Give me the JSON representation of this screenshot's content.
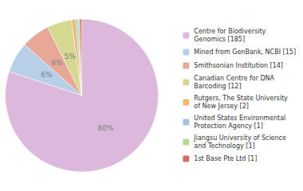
{
  "chart_data": {
    "type": "pie",
    "categories": [
      "Centre for Biodiversity\nGenomics [185]",
      "Mined from GenBank, NCBI [15]",
      "Smithsonian Institution [14]",
      "Canadian Centre for DNA\nBarcoding [12]",
      "Rutgers, The State University\nof New Jersey [2]",
      "United States Environmental\nProtection Agency [1]",
      "Jiangsu University of Science\nand Technology [1]",
      "1st Base Pte Ltd [1]"
    ],
    "values": [
      80.09,
      6.49,
      6.06,
      5.19,
      0.87,
      0.43,
      0.43,
      0.43
    ],
    "value_labels": [
      "80%",
      "6%",
      "6%",
      "5%",
      null,
      null,
      null,
      null
    ],
    "data_labels": true,
    "colors": [
      "#ddb8dd",
      "#b8cfe8",
      "#e8a898",
      "#d4d890",
      "#f0b870",
      "#a8c0e0",
      "#b8d898",
      "#d07060"
    ],
    "legend": "right"
  }
}
